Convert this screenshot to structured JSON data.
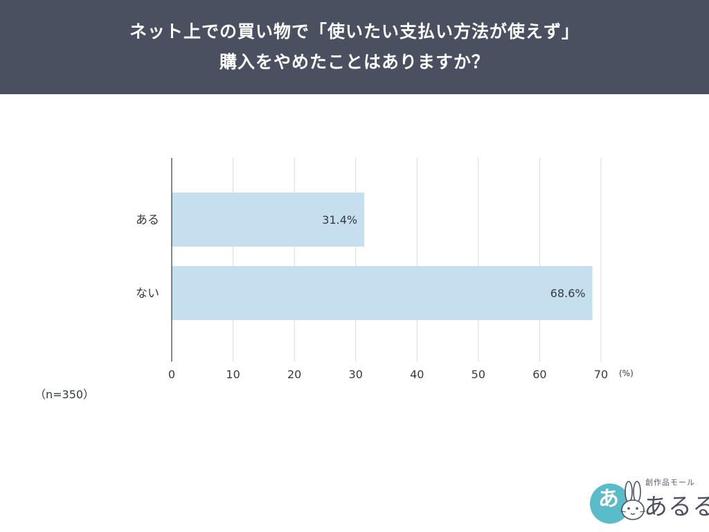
{
  "header": {
    "title_line1": "ネット上での買い物で「使いたい支払い方法が使えず」",
    "title_line2": "購入をやめたことはありますか？"
  },
  "sample_note": "（n=350）",
  "logo": {
    "circle_glyph": "あ",
    "sub_text": "創作品モール",
    "main_text": "あるる",
    "icon": "rabbit-icon",
    "circle_color": "#5bbcc9"
  },
  "chart_data": {
    "type": "bar",
    "orientation": "horizontal",
    "categories": [
      "ある",
      "ない"
    ],
    "values": [
      31.4,
      68.6
    ],
    "value_labels": [
      "31.4%",
      "68.6%"
    ],
    "x_ticks": [
      "0",
      "10",
      "20",
      "30",
      "40",
      "50",
      "60",
      "70"
    ],
    "xlim": [
      0,
      70
    ],
    "unit": "(%)",
    "grid": true,
    "bar_color": "#c6dfee"
  }
}
